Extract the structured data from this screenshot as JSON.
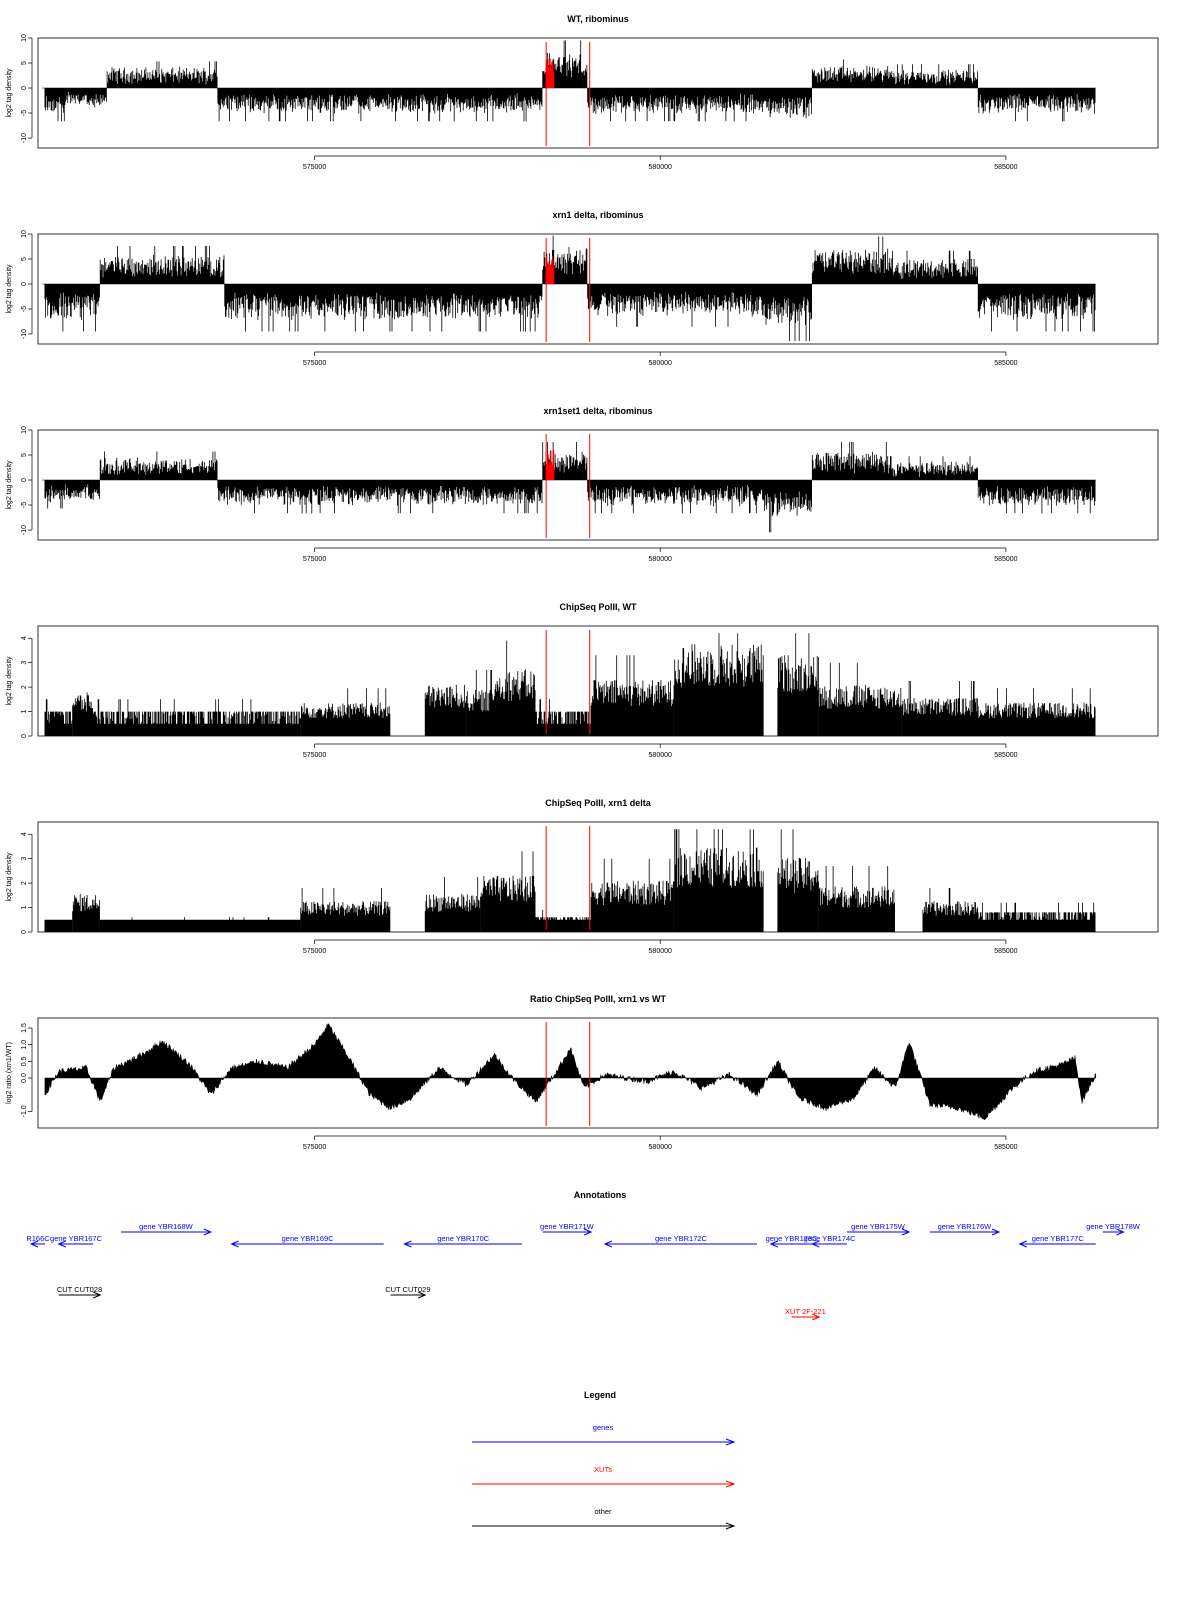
{
  "chart_data": [
    {
      "type": "bar",
      "title": "WT, ribominus",
      "ylabel": "log2 tag density",
      "ylim": [
        -12,
        10
      ],
      "yticks": [
        "10",
        "5",
        "0",
        "-5",
        "-10"
      ],
      "xticks": [
        "575000",
        "580000",
        "585000"
      ],
      "xlim": [
        571000,
        587200
      ],
      "markers": [
        578350,
        578980
      ],
      "series": {
        "name": "",
        "segments": [
          {
            "x0": 571100,
            "x1": 571400,
            "v": -3.5
          },
          {
            "x0": 571400,
            "x1": 572000,
            "v": -2.5
          },
          {
            "x0": 572000,
            "x1": 573600,
            "v": 2.8
          },
          {
            "x0": 573600,
            "x1": 578300,
            "v": -3.5
          },
          {
            "x0": 578300,
            "x1": 578950,
            "v": 5.0
          },
          {
            "x0": 578950,
            "x1": 581500,
            "v": -3.5
          },
          {
            "x0": 581500,
            "x1": 582200,
            "v": -4.5
          },
          {
            "x0": 582200,
            "x1": 583400,
            "v": 3.0
          },
          {
            "x0": 583400,
            "x1": 584600,
            "v": 2.5
          },
          {
            "x0": 584600,
            "x1": 586300,
            "v": -3.5
          }
        ]
      }
    },
    {
      "type": "bar",
      "title": "xrn1 delta, ribominus",
      "ylabel": "log2 tag density",
      "ylim": [
        -12,
        10
      ],
      "yticks": [
        "10",
        "5",
        "0",
        "-5",
        "-10"
      ],
      "xticks": [
        "575000",
        "580000",
        "585000"
      ],
      "xlim": [
        571000,
        587200
      ],
      "markers": [
        578350,
        578980
      ],
      "series": {
        "name": "",
        "segments": [
          {
            "x0": 571100,
            "x1": 571900,
            "v": -5.0
          },
          {
            "x0": 571900,
            "x1": 573700,
            "v": 4.0
          },
          {
            "x0": 573700,
            "x1": 578300,
            "v": -5.0
          },
          {
            "x0": 578300,
            "x1": 578950,
            "v": 5.5
          },
          {
            "x0": 578950,
            "x1": 581500,
            "v": -4.5
          },
          {
            "x0": 581500,
            "x1": 582200,
            "v": -6.0
          },
          {
            "x0": 582200,
            "x1": 583300,
            "v": 5.0
          },
          {
            "x0": 583300,
            "x1": 584600,
            "v": 3.5
          },
          {
            "x0": 584600,
            "x1": 586300,
            "v": -5.0
          }
        ]
      }
    },
    {
      "type": "bar",
      "title": "xrn1set1 delta, ribominus",
      "ylabel": "log2 tag density",
      "ylim": [
        -12,
        10
      ],
      "yticks": [
        "10",
        "5",
        "0",
        "-5",
        "-10"
      ],
      "xticks": [
        "575000",
        "580000",
        "585000"
      ],
      "xlim": [
        571000,
        587200
      ],
      "markers": [
        578350,
        578980
      ],
      "series": {
        "name": "",
        "segments": [
          {
            "x0": 571100,
            "x1": 571900,
            "v": -3.0
          },
          {
            "x0": 571900,
            "x1": 573600,
            "v": 3.0
          },
          {
            "x0": 573600,
            "x1": 578300,
            "v": -3.5
          },
          {
            "x0": 578300,
            "x1": 578950,
            "v": 4.0
          },
          {
            "x0": 578950,
            "x1": 581500,
            "v": -3.5
          },
          {
            "x0": 581500,
            "x1": 582200,
            "v": -5.5
          },
          {
            "x0": 582200,
            "x1": 583300,
            "v": 4.0
          },
          {
            "x0": 583300,
            "x1": 584600,
            "v": 2.5
          },
          {
            "x0": 584600,
            "x1": 586300,
            "v": -3.5
          }
        ]
      }
    },
    {
      "type": "bar",
      "title": "ChipSeq PolII, WT",
      "ylabel": "log2 tag density",
      "ylim": [
        0,
        4.5
      ],
      "yticks": [
        "4",
        "3",
        "2",
        "1",
        "0"
      ],
      "xticks": [
        "575000",
        "580000",
        "585000"
      ],
      "xlim": [
        571000,
        587200
      ],
      "markers": [
        578350,
        578980
      ],
      "series": {
        "name": "",
        "segments": [
          {
            "x0": 571100,
            "x1": 571500,
            "v": 1.0
          },
          {
            "x0": 571500,
            "x1": 571800,
            "v": 1.7
          },
          {
            "x0": 571800,
            "x1": 574800,
            "v": 1.0
          },
          {
            "x0": 574800,
            "x1": 576100,
            "v": 1.3
          },
          {
            "x0": 576600,
            "x1": 577200,
            "v": 2.0
          },
          {
            "x0": 577200,
            "x1": 577600,
            "v": 1.8
          },
          {
            "x0": 577600,
            "x1": 578200,
            "v": 2.6
          },
          {
            "x0": 578200,
            "x1": 579000,
            "v": 1.0
          },
          {
            "x0": 579000,
            "x1": 580200,
            "v": 2.2
          },
          {
            "x0": 580200,
            "x1": 581500,
            "v": 3.6
          },
          {
            "x0": 581700,
            "x1": 582300,
            "v": 3.2
          },
          {
            "x0": 582300,
            "x1": 583500,
            "v": 2.0
          },
          {
            "x0": 583500,
            "x1": 584600,
            "v": 1.5
          },
          {
            "x0": 584600,
            "x1": 586300,
            "v": 1.3
          }
        ]
      }
    },
    {
      "type": "bar",
      "title": "ChipSeq PolII, xrn1 delta",
      "ylabel": "log2 tag density",
      "ylim": [
        0,
        4.5
      ],
      "yticks": [
        "4",
        "3",
        "2",
        "1",
        "0"
      ],
      "xticks": [
        "575000",
        "580000",
        "585000"
      ],
      "xlim": [
        571000,
        587200
      ],
      "markers": [
        578350,
        578980
      ],
      "series": {
        "name": "",
        "segments": [
          {
            "x0": 571100,
            "x1": 571500,
            "v": 0.5
          },
          {
            "x0": 571500,
            "x1": 571900,
            "v": 1.5
          },
          {
            "x0": 571900,
            "x1": 574800,
            "v": 0.4
          },
          {
            "x0": 574800,
            "x1": 576100,
            "v": 1.2
          },
          {
            "x0": 576600,
            "x1": 577400,
            "v": 1.5
          },
          {
            "x0": 577400,
            "x1": 578200,
            "v": 2.2
          },
          {
            "x0": 578200,
            "x1": 579000,
            "v": 0.6
          },
          {
            "x0": 579000,
            "x1": 580200,
            "v": 2.0
          },
          {
            "x0": 580200,
            "x1": 581500,
            "v": 3.3
          },
          {
            "x0": 581700,
            "x1": 582300,
            "v": 2.9
          },
          {
            "x0": 582300,
            "x1": 583400,
            "v": 1.8
          },
          {
            "x0": 583800,
            "x1": 584600,
            "v": 1.2
          },
          {
            "x0": 584600,
            "x1": 586300,
            "v": 0.8
          }
        ]
      }
    },
    {
      "type": "area",
      "title": "Ratio ChipSeq PolII, xrn1 vs WT",
      "ylabel": "log2 ratio (xrn1/WT)",
      "ylim": [
        -1.5,
        1.8
      ],
      "yticks": [
        "1.5",
        "1.0",
        "0.5",
        "0.0",
        "-1.0"
      ],
      "xticks": [
        "575000",
        "580000",
        "585000"
      ],
      "xlim": [
        571000,
        587200
      ],
      "markers": [
        578350,
        578980
      ],
      "series": {
        "name": "",
        "points": [
          [
            571100,
            -0.5
          ],
          [
            571300,
            0.2
          ],
          [
            571700,
            0.3
          ],
          [
            571900,
            -0.7
          ],
          [
            572100,
            0.3
          ],
          [
            572500,
            0.7
          ],
          [
            572800,
            1.1
          ],
          [
            573200,
            0.4
          ],
          [
            573500,
            -0.5
          ],
          [
            573800,
            0.3
          ],
          [
            574200,
            0.5
          ],
          [
            574600,
            0.3
          ],
          [
            575000,
            1.0
          ],
          [
            575200,
            1.6
          ],
          [
            575500,
            0.6
          ],
          [
            575800,
            -0.5
          ],
          [
            576100,
            -0.9
          ],
          [
            576400,
            -0.6
          ],
          [
            576800,
            0.3
          ],
          [
            577200,
            -0.2
          ],
          [
            577600,
            0.7
          ],
          [
            577900,
            -0.1
          ],
          [
            578200,
            -0.7
          ],
          [
            578500,
            0.2
          ],
          [
            578700,
            0.9
          ],
          [
            578900,
            -0.3
          ],
          [
            579200,
            0.1
          ],
          [
            579800,
            -0.1
          ],
          [
            580200,
            0.2
          ],
          [
            580600,
            -0.3
          ],
          [
            581000,
            0.1
          ],
          [
            581400,
            -0.5
          ],
          [
            581700,
            0.5
          ],
          [
            582000,
            -0.6
          ],
          [
            582400,
            -0.9
          ],
          [
            582800,
            -0.6
          ],
          [
            583100,
            0.3
          ],
          [
            583400,
            -0.3
          ],
          [
            583600,
            1.1
          ],
          [
            583900,
            -0.8
          ],
          [
            584300,
            -0.9
          ],
          [
            584700,
            -1.2
          ],
          [
            585100,
            -0.3
          ],
          [
            585400,
            0.2
          ],
          [
            585800,
            0.4
          ],
          [
            586000,
            0.6
          ],
          [
            586100,
            -0.7
          ],
          [
            586300,
            0.1
          ]
        ]
      }
    }
  ],
  "annotations": {
    "title": "Annotations",
    "genes": [
      {
        "label": "R166C",
        "x0": 570900,
        "x1": 571100,
        "dir": "left",
        "row": 1
      },
      {
        "label": "gene YBR167C",
        "x0": 571300,
        "x1": 571800,
        "dir": "left",
        "row": 1
      },
      {
        "label": "gene YBR168W",
        "x0": 572200,
        "x1": 573500,
        "dir": "right",
        "row": 0
      },
      {
        "label": "gene YBR169C",
        "x0": 573800,
        "x1": 576000,
        "dir": "left",
        "row": 1
      },
      {
        "label": "gene YBR170C",
        "x0": 576300,
        "x1": 578000,
        "dir": "left",
        "row": 1
      },
      {
        "label": "gene YBR171W",
        "x0": 578300,
        "x1": 579000,
        "dir": "right",
        "row": 0
      },
      {
        "label": "gene YBR172C",
        "x0": 579200,
        "x1": 581400,
        "dir": "left",
        "row": 1
      },
      {
        "label": "gene YBR173C",
        "x0": 581600,
        "x1": 582200,
        "dir": "left",
        "row": 1
      },
      {
        "label": "gene YBR174C",
        "x0": 582200,
        "x1": 582700,
        "dir": "left",
        "row": 1
      },
      {
        "label": "gene YBR175W",
        "x0": 582700,
        "x1": 583600,
        "dir": "right",
        "row": 0
      },
      {
        "label": "gene YBR176W",
        "x0": 583900,
        "x1": 584900,
        "dir": "right",
        "row": 0
      },
      {
        "label": "gene YBR177C",
        "x0": 585200,
        "x1": 586300,
        "dir": "left",
        "row": 1
      },
      {
        "label": "gene YBR178W",
        "x0": 586400,
        "x1": 586700,
        "dir": "right",
        "row": 0
      }
    ],
    "others": [
      {
        "label": "CUT CUT028",
        "x0": 571300,
        "x1": 571900,
        "dir": "right"
      },
      {
        "label": "CUT CUT029",
        "x0": 576100,
        "x1": 576600,
        "dir": "right"
      }
    ],
    "xuts": [
      {
        "label": "XUT 2F-221",
        "x0": 581900,
        "x1": 582300,
        "dir": "right"
      }
    ]
  },
  "legend": {
    "title": "Legend",
    "items": [
      {
        "label": "genes",
        "color": "#0000ff"
      },
      {
        "label": "XUTs",
        "color": "#ff0000"
      },
      {
        "label": "other",
        "color": "#000000"
      }
    ]
  },
  "colors": {
    "genes": "#0000ff",
    "xuts": "#ff0000",
    "other": "#000000",
    "marker": "#ff0000"
  }
}
